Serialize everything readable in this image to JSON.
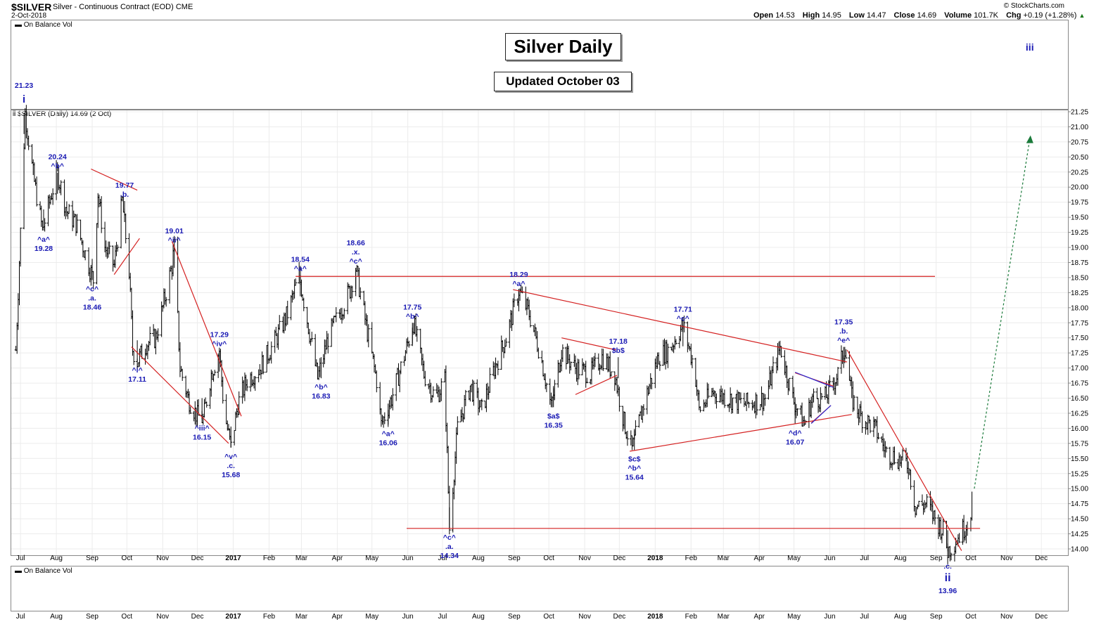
{
  "header": {
    "symbol": "$SILVER",
    "description": "Silver - Continuous Contract (EOD)",
    "exchange": "CME",
    "date": "2-Oct-2018",
    "brand": "© StockCharts.com",
    "ohlc": {
      "open_label": "Open",
      "open": "14.53",
      "high_label": "High",
      "high": "14.95",
      "low_label": "Low",
      "low": "14.47",
      "close_label": "Close",
      "close": "14.69",
      "volume_label": "Volume",
      "volume": "101.7K",
      "chg_label": "Chg",
      "chg": "+0.19 (+1.28%)"
    }
  },
  "top_panel": {
    "label": "On Balance Vol"
  },
  "bottom_panel": {
    "label": "On Balance Vol"
  },
  "price_panel": {
    "label": "$SILVER (Daily) 14.69 (2 Oct)"
  },
  "boxes": {
    "title": "Silver Daily",
    "updated": "Updated October 03"
  },
  "colors": {
    "annotation": "#1a1ab4",
    "trendline": "#d42020",
    "projection": "#1a7a3a",
    "bars": "#000000"
  },
  "chart_data": {
    "type": "ohlc",
    "title": "Silver Daily",
    "ylim": [
      13.9,
      21.3
    ],
    "y_ticks": [
      "21.25",
      "21.00",
      "20.75",
      "20.50",
      "20.25",
      "20.00",
      "19.75",
      "19.50",
      "19.25",
      "19.00",
      "18.75",
      "18.50",
      "18.25",
      "18.00",
      "17.75",
      "17.50",
      "17.25",
      "17.00",
      "16.75",
      "16.50",
      "16.25",
      "16.00",
      "15.75",
      "15.50",
      "15.25",
      "15.00",
      "14.75",
      "14.50",
      "14.25",
      "14.00"
    ],
    "x_ticks": [
      {
        "label": "Jul",
        "date": "2016-07-01"
      },
      {
        "label": "Aug",
        "date": "2016-08-01"
      },
      {
        "label": "Sep",
        "date": "2016-09-01"
      },
      {
        "label": "Oct",
        "date": "2016-10-01"
      },
      {
        "label": "Nov",
        "date": "2016-11-01"
      },
      {
        "label": "Dec",
        "date": "2016-12-01"
      },
      {
        "label": "2017",
        "date": "2017-01-01"
      },
      {
        "label": "Feb",
        "date": "2017-02-01"
      },
      {
        "label": "Mar",
        "date": "2017-03-01"
      },
      {
        "label": "Apr",
        "date": "2017-04-01"
      },
      {
        "label": "May",
        "date": "2017-05-01"
      },
      {
        "label": "Jun",
        "date": "2017-06-01"
      },
      {
        "label": "Jul",
        "date": "2017-07-01"
      },
      {
        "label": "Aug",
        "date": "2017-08-01"
      },
      {
        "label": "Sep",
        "date": "2017-09-01"
      },
      {
        "label": "Oct",
        "date": "2017-10-01"
      },
      {
        "label": "Nov",
        "date": "2017-11-01"
      },
      {
        "label": "Dec",
        "date": "2017-12-01"
      },
      {
        "label": "2018",
        "date": "2018-01-01"
      },
      {
        "label": "Feb",
        "date": "2018-02-01"
      },
      {
        "label": "Mar",
        "date": "2018-03-01"
      },
      {
        "label": "Apr",
        "date": "2018-04-01"
      },
      {
        "label": "May",
        "date": "2018-05-01"
      },
      {
        "label": "Jun",
        "date": "2018-06-01"
      },
      {
        "label": "Jul",
        "date": "2018-07-01"
      },
      {
        "label": "Aug",
        "date": "2018-08-01"
      },
      {
        "label": "Sep",
        "date": "2018-09-01"
      },
      {
        "label": "Oct",
        "date": "2018-10-01"
      },
      {
        "label": "Nov",
        "date": "2018-11-01"
      },
      {
        "label": "Dec",
        "date": "2018-12-01"
      }
    ],
    "price_path": [
      [
        "2016-06-27",
        17.3
      ],
      [
        "2016-07-05",
        21.23
      ],
      [
        "2016-07-12",
        20.2
      ],
      [
        "2016-07-20",
        19.28
      ],
      [
        "2016-07-28",
        19.9
      ],
      [
        "2016-08-02",
        20.24
      ],
      [
        "2016-08-10",
        19.6
      ],
      [
        "2016-08-18",
        19.4
      ],
      [
        "2016-08-26",
        18.9
      ],
      [
        "2016-09-02",
        18.46
      ],
      [
        "2016-09-06",
        19.9
      ],
      [
        "2016-09-12",
        19.0
      ],
      [
        "2016-09-20",
        18.7
      ],
      [
        "2016-09-27",
        19.77
      ],
      [
        "2016-10-03",
        18.6
      ],
      [
        "2016-10-06",
        17.3
      ],
      [
        "2016-10-10",
        17.11
      ],
      [
        "2016-10-18",
        17.4
      ],
      [
        "2016-10-26",
        17.5
      ],
      [
        "2016-11-01",
        18.0
      ],
      [
        "2016-11-09",
        18.7
      ],
      [
        "2016-11-11",
        19.01
      ],
      [
        "2016-11-16",
        17.0
      ],
      [
        "2016-11-23",
        16.5
      ],
      [
        "2016-12-01",
        16.2
      ],
      [
        "2016-12-06",
        16.15
      ],
      [
        "2016-12-13",
        16.9
      ],
      [
        "2016-12-20",
        17.29
      ],
      [
        "2016-12-24",
        16.3
      ],
      [
        "2016-12-30",
        15.68
      ],
      [
        "2017-01-05",
        16.4
      ],
      [
        "2017-01-13",
        16.8
      ],
      [
        "2017-01-24",
        17.0
      ],
      [
        "2017-02-05",
        17.4
      ],
      [
        "2017-02-17",
        17.9
      ],
      [
        "2017-02-27",
        18.54
      ],
      [
        "2017-03-06",
        17.8
      ],
      [
        "2017-03-15",
        16.83
      ],
      [
        "2017-03-24",
        17.5
      ],
      [
        "2017-04-05",
        18.0
      ],
      [
        "2017-04-12",
        18.3
      ],
      [
        "2017-04-17",
        18.66
      ],
      [
        "2017-04-26",
        17.7
      ],
      [
        "2017-05-05",
        16.8
      ],
      [
        "2017-05-09",
        16.06
      ],
      [
        "2017-05-18",
        16.5
      ],
      [
        "2017-05-29",
        17.2
      ],
      [
        "2017-06-06",
        17.75
      ],
      [
        "2017-06-15",
        16.9
      ],
      [
        "2017-06-25",
        16.5
      ],
      [
        "2017-07-03",
        16.8
      ],
      [
        "2017-07-07",
        14.34
      ],
      [
        "2017-07-14",
        16.0
      ],
      [
        "2017-07-25",
        16.7
      ],
      [
        "2017-08-04",
        16.3
      ],
      [
        "2017-08-15",
        17.0
      ],
      [
        "2017-08-25",
        17.5
      ],
      [
        "2017-09-05",
        18.29
      ],
      [
        "2017-09-14",
        17.9
      ],
      [
        "2017-09-24",
        17.2
      ],
      [
        "2017-10-03",
        16.35
      ],
      [
        "2017-10-12",
        17.3
      ],
      [
        "2017-10-24",
        17.0
      ],
      [
        "2017-11-06",
        16.9
      ],
      [
        "2017-11-16",
        17.18
      ],
      [
        "2017-11-27",
        16.9
      ],
      [
        "2017-12-05",
        16.1
      ],
      [
        "2017-12-12",
        15.64
      ],
      [
        "2017-12-22",
        16.4
      ],
      [
        "2018-01-04",
        17.2
      ],
      [
        "2018-01-13",
        17.3
      ],
      [
        "2018-01-25",
        17.71
      ],
      [
        "2018-02-04",
        17.0
      ],
      [
        "2018-02-08",
        16.3
      ],
      [
        "2018-02-20",
        16.6
      ],
      [
        "2018-03-05",
        16.5
      ],
      [
        "2018-03-20",
        16.4
      ],
      [
        "2018-04-06",
        16.5
      ],
      [
        "2018-04-19",
        17.35
      ],
      [
        "2018-04-30",
        16.5
      ],
      [
        "2018-05-10",
        16.07
      ],
      [
        "2018-05-17",
        16.5
      ],
      [
        "2018-05-28",
        16.5
      ],
      [
        "2018-06-08",
        16.9
      ],
      [
        "2018-06-14",
        17.35
      ],
      [
        "2018-06-20",
        16.5
      ],
      [
        "2018-06-28",
        16.2
      ],
      [
        "2018-07-10",
        16.0
      ],
      [
        "2018-07-20",
        15.6
      ],
      [
        "2018-07-30",
        15.5
      ],
      [
        "2018-08-08",
        15.4
      ],
      [
        "2018-08-14",
        14.7
      ],
      [
        "2018-08-24",
        14.75
      ],
      [
        "2018-08-31",
        14.5
      ],
      [
        "2018-09-07",
        14.3
      ],
      [
        "2018-09-11",
        13.96
      ],
      [
        "2018-09-20",
        14.2
      ],
      [
        "2018-09-27",
        14.4
      ],
      [
        "2018-10-02",
        14.69
      ]
    ],
    "trendlines": [
      {
        "from": [
          "2016-08-31",
          20.3
        ],
        "to": [
          "2016-10-10",
          19.95
        ]
      },
      {
        "from": [
          "2016-09-20",
          18.55
        ],
        "to": [
          "2016-10-12",
          19.15
        ]
      },
      {
        "from": [
          "2016-10-05",
          17.35
        ],
        "to": [
          "2016-12-28",
          15.75
        ]
      },
      {
        "from": [
          "2016-11-09",
          19.1
        ],
        "to": [
          "2017-01-08",
          16.2
        ]
      },
      {
        "from": [
          "2017-02-24",
          18.52
        ],
        "to": [
          "2018-08-31",
          18.52
        ]
      },
      {
        "from": [
          "2017-08-31",
          18.3
        ],
        "to": [
          "2018-06-16",
          17.1
        ]
      },
      {
        "from": [
          "2017-10-12",
          17.5
        ],
        "to": [
          "2017-11-28",
          17.3
        ]
      },
      {
        "from": [
          "2017-10-24",
          16.56
        ],
        "to": [
          "2017-11-29",
          16.88
        ]
      },
      {
        "from": [
          "2017-12-10",
          15.62
        ],
        "to": [
          "2018-06-20",
          16.23
        ]
      },
      {
        "from": [
          "2018-05-02",
          16.92
        ],
        "to": [
          "2018-06-04",
          16.7
        ]
      },
      {
        "from": [
          "2018-05-16",
          16.09
        ],
        "to": [
          "2018-06-02",
          16.38
        ]
      },
      {
        "from": [
          "2018-06-16",
          17.3
        ],
        "to": [
          "2018-09-23",
          13.97
        ]
      },
      {
        "from": [
          "2017-05-31",
          14.34
        ],
        "to": [
          "2018-10-09",
          14.34
        ]
      }
    ],
    "projection": {
      "from": [
        "2018-10-04",
        15.0
      ],
      "to": [
        "2018-11-21",
        20.8
      ]
    },
    "annotations": [
      {
        "d": "2016-07-04",
        "p": 21.23,
        "lines": [
          "21.23"
        ],
        "big": "i",
        "place": "top"
      },
      {
        "d": "2016-08-02",
        "p": 20.24,
        "lines": [
          "20.24",
          "^b^"
        ],
        "place": "above"
      },
      {
        "d": "2016-07-21",
        "p": 19.28,
        "lines": [
          "^a^",
          "19.28"
        ],
        "place": "below"
      },
      {
        "d": "2016-09-29",
        "p": 19.77,
        "lines": [
          "19.77",
          ".b."
        ],
        "place": "above"
      },
      {
        "d": "2016-09-01",
        "p": 18.46,
        "lines": [
          "^c^",
          ".a.",
          "18.46"
        ],
        "place": "below"
      },
      {
        "d": "2016-11-11",
        "p": 19.01,
        "lines": [
          "19.01",
          "^ii^"
        ],
        "place": "above"
      },
      {
        "d": "2016-10-10",
        "p": 17.11,
        "lines": [
          "^i^",
          "17.11"
        ],
        "place": "below"
      },
      {
        "d": "2016-12-20",
        "p": 17.29,
        "lines": [
          "17.29",
          "^iv^"
        ],
        "place": "above"
      },
      {
        "d": "2016-12-05",
        "p": 16.15,
        "lines": [
          "^iii^",
          "16.15"
        ],
        "place": "below"
      },
      {
        "d": "2016-12-30",
        "p": 15.68,
        "lines": [
          "^v^",
          ".c.",
          "15.68"
        ],
        "place": "below"
      },
      {
        "d": "2017-02-28",
        "p": 18.54,
        "lines": [
          "18.54",
          "^a^"
        ],
        "place": "above"
      },
      {
        "d": "2017-03-18",
        "p": 16.83,
        "lines": [
          "^b^",
          "16.83"
        ],
        "place": "below"
      },
      {
        "d": "2017-04-17",
        "p": 18.66,
        "lines": [
          "18.66",
          ".x.",
          "^c^"
        ],
        "place": "above"
      },
      {
        "d": "2017-05-15",
        "p": 16.06,
        "lines": [
          "^a^",
          "16.06"
        ],
        "place": "below"
      },
      {
        "d": "2017-06-05",
        "p": 17.75,
        "lines": [
          "17.75",
          "^b^"
        ],
        "place": "above"
      },
      {
        "d": "2017-07-07",
        "p": 14.34,
        "lines": [
          "^c^",
          ".a.",
          "14.34"
        ],
        "place": "below"
      },
      {
        "d": "2017-09-05",
        "p": 18.29,
        "lines": [
          "18.29",
          "^a^"
        ],
        "place": "above"
      },
      {
        "d": "2017-10-05",
        "p": 16.35,
        "lines": [
          "$a$",
          "16.35"
        ],
        "place": "below"
      },
      {
        "d": "2017-11-30",
        "p": 17.18,
        "lines": [
          "17.18",
          "$b$"
        ],
        "place": "above"
      },
      {
        "d": "2017-12-14",
        "p": 15.64,
        "lines": [
          "$c$",
          "^b^",
          "15.64"
        ],
        "place": "below"
      },
      {
        "d": "2018-01-25",
        "p": 17.71,
        "lines": [
          "17.71",
          "^c^"
        ],
        "place": "above"
      },
      {
        "d": "2018-05-02",
        "p": 16.07,
        "lines": [
          "^d^",
          "16.07"
        ],
        "place": "below"
      },
      {
        "d": "2018-06-13",
        "p": 17.35,
        "lines": [
          "17.35",
          ".b.",
          "^e^"
        ],
        "place": "above"
      },
      {
        "d": "2018-09-11",
        "p": 13.96,
        "lines": [
          ".c."
        ],
        "big": "ii",
        "foot": "13.96",
        "place": "bottom"
      },
      {
        "d": "2018-11-21",
        "p": 21.0,
        "lines": [],
        "big": "iii",
        "place": "proj"
      }
    ]
  }
}
